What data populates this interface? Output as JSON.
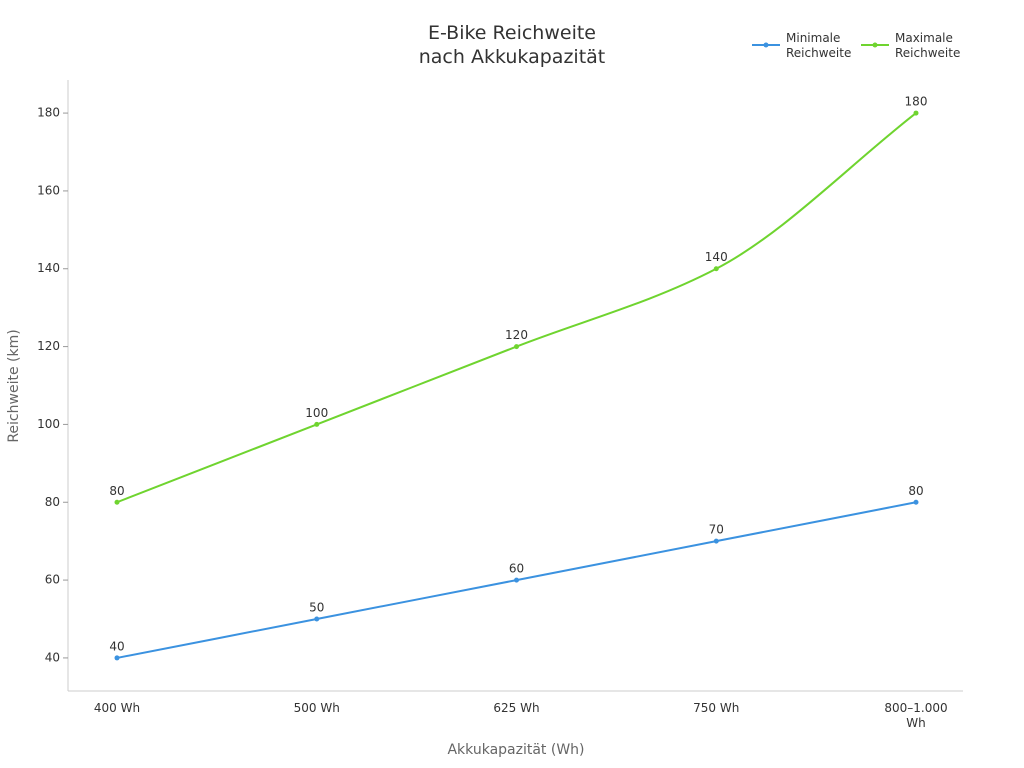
{
  "chart_data": {
    "type": "line",
    "title": "E-Bike Reichweite nach Akkukapazität",
    "x_label": "Akkukapazität (Wh)",
    "y_label": "Reichweite (km)",
    "categories": [
      "400 Wh",
      "500 Wh",
      "625 Wh",
      "750 Wh",
      "800–1.000 Wh"
    ],
    "series": [
      {
        "name": "Minimale Reichweite",
        "color": "#3b92e0",
        "values": [
          40,
          50,
          60,
          70,
          80
        ]
      },
      {
        "name": "Maximale Reichweite",
        "color": "#6fd42f",
        "values": [
          80,
          100,
          120,
          140,
          180
        ]
      }
    ],
    "ylim": [
      31.5,
      188.5
    ],
    "yticks": [
      40,
      60,
      80,
      100,
      120,
      140,
      160,
      180
    ],
    "smooth": true,
    "legend": "top-right"
  }
}
